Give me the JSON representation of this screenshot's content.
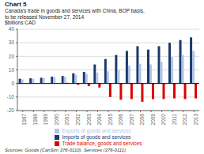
{
  "chart_data": {
    "type": "bar",
    "title": "Chart 5",
    "subtitle": [
      "Canada's trade in goods and services with China, BOP basis,",
      "to be released November 27, 2014"
    ],
    "ylabel": "$billions CAD",
    "annotations": [
      "Sources: Goods (CanSim 376-0110), Services (376-0111)."
    ],
    "categories": [
      "1997",
      "1998",
      "1999",
      "2000",
      "2001",
      "2002",
      "2003",
      "2004",
      "2005",
      "2006",
      "2007",
      "2008",
      "2009",
      "2010",
      "2011",
      "2012",
      "2013"
    ],
    "series": [
      {
        "name": "Imports of goods and services",
        "color": "#1a3a6b",
        "values": [
          3.5,
          3.8,
          4.2,
          5.0,
          5.5,
          7.5,
          8.5,
          14.0,
          18.0,
          21.0,
          24.0,
          27.5,
          25.0,
          27.5,
          30.0,
          32.0,
          34.0
        ]
      },
      {
        "name": "Exports of goods and services",
        "color": "#aec6e8",
        "values": [
          3.0,
          3.5,
          4.0,
          4.5,
          5.0,
          6.5,
          7.0,
          8.0,
          9.0,
          10.0,
          13.0,
          14.5,
          14.0,
          16.0,
          19.5,
          21.0,
          24.0
        ]
      },
      {
        "name": "Trade balance, goods and services",
        "color": "#dd0000",
        "values": [
          0.0,
          0.0,
          0.0,
          0.0,
          0.5,
          -1.0,
          -2.0,
          -3.0,
          -10.0,
          -12.0,
          -11.5,
          -13.5,
          -11.5,
          -11.5,
          -11.0,
          -11.5,
          -11.0
        ]
      }
    ],
    "ylim": [
      -20,
      40
    ],
    "yticks": [
      -20,
      -10,
      0,
      10,
      20,
      30,
      40
    ],
    "grid": true,
    "legend": "bottom"
  }
}
